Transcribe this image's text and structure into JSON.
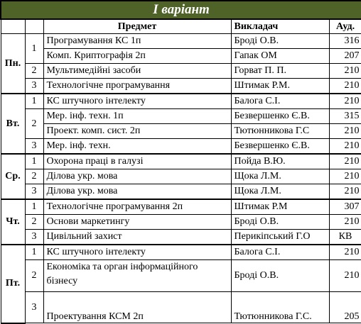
{
  "title": "І варіант",
  "headers": {
    "subject": "Предмет",
    "teacher": "Викладач",
    "room": "Ауд."
  },
  "days": [
    {
      "day": "Пн.",
      "pairs": [
        {
          "num": "1",
          "rows": [
            {
              "subject": "Програмування КС 1п",
              "teacher": "Броді О.В.",
              "room": "316"
            },
            {
              "subject": "Комп. Криптографія 2п",
              "teacher": "Гапак ОМ",
              "room": "207"
            }
          ]
        },
        {
          "num": "2",
          "rows": [
            {
              "subject": "Мультимедійні засоби",
              "teacher": "Горват П. П.",
              "room": "210"
            }
          ]
        },
        {
          "num": "3",
          "rows": [
            {
              "subject": "Технологічне програмування",
              "teacher": "Штимак Р.М.",
              "room": "210"
            }
          ]
        }
      ]
    },
    {
      "day": "Вт.",
      "pairs": [
        {
          "num": "1",
          "rows": [
            {
              "subject": "КС штучного інтелекту",
              "teacher": "Балога С.І.",
              "room": "210"
            }
          ]
        },
        {
          "num": "2",
          "rows": [
            {
              "subject": "Мер. інф. техн. 1п",
              "teacher": "Безвершенко Є.В.",
              "room": "315"
            },
            {
              "subject": "Проект. комп. сист. 2п",
              "teacher": "Тютюнникова Г.С",
              "room": "210"
            }
          ]
        },
        {
          "num": "3",
          "rows": [
            {
              "subject": "Мер. інф. техн.",
              "teacher": "Безвершенко Є.В.",
              "room": "210"
            }
          ]
        }
      ]
    },
    {
      "day": "Ср.",
      "pairs": [
        {
          "num": "1",
          "rows": [
            {
              "subject": "Охорона праці в галузі",
              "teacher": "Пойда В.Ю.",
              "room": "210"
            }
          ]
        },
        {
          "num": "2",
          "rows": [
            {
              "subject": "Ділова укр. мова",
              "teacher": "Щока Л.М.",
              "room": "210"
            }
          ]
        },
        {
          "num": "3",
          "rows": [
            {
              "subject": "Ділова укр. мова",
              "teacher": "Щока Л.М.",
              "room": "210"
            }
          ]
        }
      ]
    },
    {
      "day": "Чт.",
      "pairs": [
        {
          "num": "1",
          "rows": [
            {
              "subject": "Технологічне програмування 2п",
              "teacher": "Штимак Р.М",
              "room": "307"
            }
          ]
        },
        {
          "num": "2",
          "rows": [
            {
              "subject": "Основи маркетингу",
              "teacher": "Броді О.В.",
              "room": "210"
            }
          ]
        },
        {
          "num": "3",
          "rows": [
            {
              "subject": "Цивільний захист",
              "teacher": "Перикіпський Г.О",
              "room": "КВ"
            }
          ]
        }
      ]
    },
    {
      "day": "Пт.",
      "pairs": [
        {
          "num": "1",
          "rows": [
            {
              "subject": "КС штучного інтелекту",
              "teacher": "Балога С.І.",
              "room": "210"
            }
          ]
        },
        {
          "num": "2",
          "rows": [
            {
              "subject": "Економіка та орган інформаційного бізнесу",
              "teacher": "Броді О.В.",
              "room": "210"
            }
          ]
        },
        {
          "num": "3",
          "rows": [
            {
              "subject": "Проектування КСМ 2п",
              "teacher": "Тютюнникова Г.С.",
              "room": "205"
            }
          ]
        }
      ]
    }
  ]
}
